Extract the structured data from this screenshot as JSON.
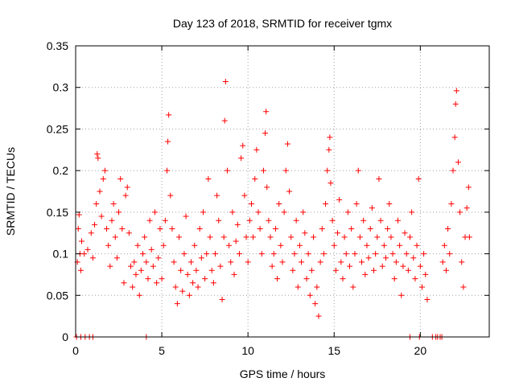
{
  "chart_data": {
    "type": "scatter",
    "title": "Day 123 of 2018, SRMTID for receiver tgmx",
    "xlabel": "GPS time / hours",
    "ylabel": "SRMTID / TECUs",
    "xlim": [
      0,
      24
    ],
    "ylim": [
      0,
      0.35
    ],
    "xticks": [
      0,
      5,
      10,
      15,
      20
    ],
    "yticks": [
      0,
      0.05,
      0.1,
      0.15,
      0.2,
      0.25,
      0.3,
      0.35
    ],
    "xtick_labels": [
      "0",
      "5",
      "10",
      "15",
      "20"
    ],
    "ytick_labels": [
      "0",
      "0.05",
      "0.1",
      "0.15",
      "0.2",
      "0.25",
      "0.3",
      "0.35"
    ],
    "grid": true,
    "marker": "+",
    "colors": {
      "points": "#ff0000",
      "grid": "#a0a0a0",
      "axes": "#000000"
    },
    "series": [
      {
        "name": "SRMTID",
        "points": [
          [
            0.1,
            0.09
          ],
          [
            0.15,
            0.13
          ],
          [
            0.2,
            0.147
          ],
          [
            0.25,
            0.1
          ],
          [
            0.3,
            0.08
          ],
          [
            0.35,
            0.115
          ],
          [
            0.5,
            0.1
          ],
          [
            0.7,
            0.105
          ],
          [
            0.9,
            0.125
          ],
          [
            1.0,
            0.095
          ],
          [
            1.1,
            0.135
          ],
          [
            1.2,
            0.16
          ],
          [
            1.25,
            0.22
          ],
          [
            1.3,
            0.215
          ],
          [
            1.4,
            0.175
          ],
          [
            1.5,
            0.145
          ],
          [
            1.6,
            0.19
          ],
          [
            1.7,
            0.2
          ],
          [
            1.8,
            0.13
          ],
          [
            1.9,
            0.11
          ],
          [
            2.0,
            0.085
          ],
          [
            2.1,
            0.14
          ],
          [
            2.2,
            0.16
          ],
          [
            2.3,
            0.12
          ],
          [
            2.4,
            0.095
          ],
          [
            2.5,
            0.15
          ],
          [
            2.6,
            0.19
          ],
          [
            2.7,
            0.13
          ],
          [
            2.8,
            0.065
          ],
          [
            2.9,
            0.17
          ],
          [
            3.0,
            0.18
          ],
          [
            3.1,
            0.125
          ],
          [
            3.2,
            0.085
          ],
          [
            3.3,
            0.06
          ],
          [
            3.4,
            0.09
          ],
          [
            3.5,
            0.075
          ],
          [
            3.6,
            0.11
          ],
          [
            3.7,
            0.05
          ],
          [
            3.8,
            0.08
          ],
          [
            3.9,
            0.1
          ],
          [
            4.0,
            0.12
          ],
          [
            4.1,
            0.09
          ],
          [
            4.2,
            0.07
          ],
          [
            4.3,
            0.14
          ],
          [
            4.4,
            0.105
          ],
          [
            4.5,
            0.085
          ],
          [
            4.6,
            0.15
          ],
          [
            4.7,
            0.065
          ],
          [
            4.8,
            0.095
          ],
          [
            4.9,
            0.13
          ],
          [
            5.0,
            0.07
          ],
          [
            5.1,
            0.11
          ],
          [
            5.2,
            0.14
          ],
          [
            5.3,
            0.2
          ],
          [
            5.35,
            0.235
          ],
          [
            5.4,
            0.267
          ],
          [
            5.5,
            0.17
          ],
          [
            5.6,
            0.13
          ],
          [
            5.7,
            0.09
          ],
          [
            5.8,
            0.06
          ],
          [
            5.9,
            0.04
          ],
          [
            6.0,
            0.12
          ],
          [
            6.1,
            0.08
          ],
          [
            6.2,
            0.055
          ],
          [
            6.3,
            0.1
          ],
          [
            6.4,
            0.145
          ],
          [
            6.5,
            0.075
          ],
          [
            6.6,
            0.05
          ],
          [
            6.7,
            0.09
          ],
          [
            6.8,
            0.065
          ],
          [
            6.9,
            0.11
          ],
          [
            7.0,
            0.08
          ],
          [
            7.1,
            0.06
          ],
          [
            7.2,
            0.13
          ],
          [
            7.3,
            0.095
          ],
          [
            7.4,
            0.15
          ],
          [
            7.5,
            0.07
          ],
          [
            7.6,
            0.1
          ],
          [
            7.7,
            0.19
          ],
          [
            7.8,
            0.12
          ],
          [
            7.9,
            0.08
          ],
          [
            8.0,
            0.065
          ],
          [
            8.1,
            0.1
          ],
          [
            8.2,
            0.17
          ],
          [
            8.3,
            0.14
          ],
          [
            8.4,
            0.085
          ],
          [
            8.5,
            0.045
          ],
          [
            8.6,
            0.12
          ],
          [
            8.65,
            0.26
          ],
          [
            8.7,
            0.307
          ],
          [
            8.8,
            0.2
          ],
          [
            8.9,
            0.11
          ],
          [
            9.0,
            0.09
          ],
          [
            9.1,
            0.15
          ],
          [
            9.2,
            0.075
          ],
          [
            9.3,
            0.115
          ],
          [
            9.4,
            0.135
          ],
          [
            9.5,
            0.1
          ],
          [
            9.6,
            0.215
          ],
          [
            9.7,
            0.23
          ],
          [
            9.8,
            0.17
          ],
          [
            9.9,
            0.12
          ],
          [
            10.0,
            0.09
          ],
          [
            10.1,
            0.14
          ],
          [
            10.2,
            0.16
          ],
          [
            10.3,
            0.12
          ],
          [
            10.4,
            0.19
          ],
          [
            10.5,
            0.225
          ],
          [
            10.6,
            0.15
          ],
          [
            10.7,
            0.13
          ],
          [
            10.8,
            0.1
          ],
          [
            10.9,
            0.2
          ],
          [
            11.0,
            0.245
          ],
          [
            11.05,
            0.271
          ],
          [
            11.1,
            0.18
          ],
          [
            11.2,
            0.14
          ],
          [
            11.3,
            0.12
          ],
          [
            11.4,
            0.085
          ],
          [
            11.5,
            0.1
          ],
          [
            11.6,
            0.13
          ],
          [
            11.7,
            0.07
          ],
          [
            11.8,
            0.16
          ],
          [
            11.9,
            0.11
          ],
          [
            12.0,
            0.09
          ],
          [
            12.1,
            0.15
          ],
          [
            12.2,
            0.2
          ],
          [
            12.3,
            0.232
          ],
          [
            12.4,
            0.175
          ],
          [
            12.5,
            0.12
          ],
          [
            12.6,
            0.08
          ],
          [
            12.7,
            0.1
          ],
          [
            12.8,
            0.14
          ],
          [
            12.9,
            0.06
          ],
          [
            13.0,
            0.11
          ],
          [
            13.1,
            0.09
          ],
          [
            13.2,
            0.15
          ],
          [
            13.3,
            0.125
          ],
          [
            13.4,
            0.07
          ],
          [
            13.5,
            0.1
          ],
          [
            13.6,
            0.05
          ],
          [
            13.7,
            0.08
          ],
          [
            13.8,
            0.12
          ],
          [
            13.9,
            0.04
          ],
          [
            14.0,
            0.06
          ],
          [
            14.1,
            0.025
          ],
          [
            14.2,
            0.09
          ],
          [
            14.3,
            0.13
          ],
          [
            14.4,
            0.1
          ],
          [
            14.5,
            0.16
          ],
          [
            14.6,
            0.2
          ],
          [
            14.7,
            0.225
          ],
          [
            14.75,
            0.24
          ],
          [
            14.8,
            0.185
          ],
          [
            14.9,
            0.14
          ],
          [
            15.0,
            0.11
          ],
          [
            15.1,
            0.08
          ],
          [
            15.2,
            0.125
          ],
          [
            15.3,
            0.165
          ],
          [
            15.4,
            0.09
          ],
          [
            15.5,
            0.07
          ],
          [
            15.6,
            0.12
          ],
          [
            15.7,
            0.1
          ],
          [
            15.8,
            0.15
          ],
          [
            15.9,
            0.085
          ],
          [
            16.0,
            0.13
          ],
          [
            16.1,
            0.06
          ],
          [
            16.2,
            0.1
          ],
          [
            16.3,
            0.16
          ],
          [
            16.4,
            0.2
          ],
          [
            16.5,
            0.12
          ],
          [
            16.6,
            0.09
          ],
          [
            16.7,
            0.14
          ],
          [
            16.8,
            0.075
          ],
          [
            16.9,
            0.11
          ],
          [
            17.0,
            0.095
          ],
          [
            17.1,
            0.13
          ],
          [
            17.2,
            0.155
          ],
          [
            17.3,
            0.08
          ],
          [
            17.4,
            0.1
          ],
          [
            17.5,
            0.12
          ],
          [
            17.6,
            0.19
          ],
          [
            17.7,
            0.14
          ],
          [
            17.8,
            0.085
          ],
          [
            17.9,
            0.11
          ],
          [
            18.0,
            0.095
          ],
          [
            18.1,
            0.13
          ],
          [
            18.2,
            0.16
          ],
          [
            18.3,
            0.12
          ],
          [
            18.4,
            0.1
          ],
          [
            18.5,
            0.07
          ],
          [
            18.6,
            0.09
          ],
          [
            18.7,
            0.14
          ],
          [
            18.8,
            0.11
          ],
          [
            18.9,
            0.05
          ],
          [
            19.0,
            0.085
          ],
          [
            19.1,
            0.125
          ],
          [
            19.2,
            0.1
          ],
          [
            19.3,
            0.08
          ],
          [
            19.4,
            0.12
          ],
          [
            19.5,
            0.15
          ],
          [
            19.6,
            0.095
          ],
          [
            19.7,
            0.07
          ],
          [
            19.8,
            0.11
          ],
          [
            19.9,
            0.19
          ],
          [
            20.0,
            0.085
          ],
          [
            20.1,
            0.06
          ],
          [
            20.2,
            0.1
          ],
          [
            20.3,
            0.075
          ],
          [
            20.4,
            0.045
          ],
          [
            21.3,
            0.09
          ],
          [
            21.4,
            0.11
          ],
          [
            21.5,
            0.08
          ],
          [
            21.6,
            0.13
          ],
          [
            21.7,
            0.1
          ],
          [
            21.8,
            0.16
          ],
          [
            21.9,
            0.2
          ],
          [
            22.0,
            0.24
          ],
          [
            22.05,
            0.28
          ],
          [
            22.1,
            0.296
          ],
          [
            22.2,
            0.21
          ],
          [
            22.3,
            0.15
          ],
          [
            22.4,
            0.09
          ],
          [
            22.5,
            0.06
          ],
          [
            22.6,
            0.12
          ],
          [
            22.7,
            0.155
          ],
          [
            22.8,
            0.18
          ],
          [
            22.85,
            0.12
          ],
          [
            0.05,
            0
          ],
          [
            0.3,
            0
          ],
          [
            0.55,
            0
          ],
          [
            0.8,
            0
          ],
          [
            1.0,
            0
          ],
          [
            4.1,
            0
          ],
          [
            19.4,
            0
          ],
          [
            19.95,
            0
          ],
          [
            20.7,
            0
          ],
          [
            20.9,
            0
          ],
          [
            21.0,
            0
          ],
          [
            21.15,
            0
          ],
          [
            21.25,
            0
          ]
        ]
      }
    ]
  }
}
